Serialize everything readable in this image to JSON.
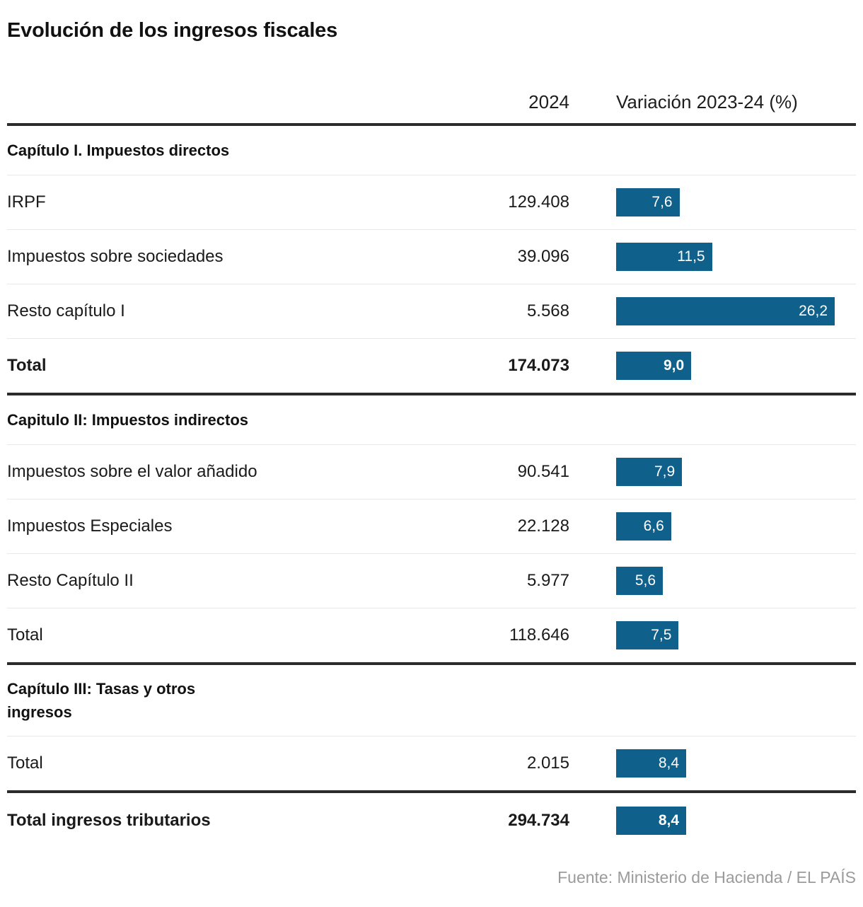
{
  "title": "Evolución de los ingresos fiscales",
  "columns": {
    "year": "2024",
    "variation": "Variación 2023-24 (%)"
  },
  "sections": [
    {
      "header": "Capítulo I. Impuestos directos",
      "rows": [
        {
          "label": "IRPF",
          "value": "129.408",
          "pct": 7.6,
          "pct_label": "7,6"
        },
        {
          "label": "Impuestos sobre sociedades",
          "value": "39.096",
          "pct": 11.5,
          "pct_label": "11,5"
        },
        {
          "label": "Resto capítulo I",
          "value": "5.568",
          "pct": 26.2,
          "pct_label": "26,2"
        },
        {
          "label": "Total",
          "value": "174.073",
          "pct": 9.0,
          "pct_label": "9,0"
        }
      ]
    },
    {
      "header": "Capitulo II: Impuestos indirectos",
      "rows": [
        {
          "label": "Impuestos sobre el valor añadido",
          "value": "90.541",
          "pct": 7.9,
          "pct_label": "7,9"
        },
        {
          "label": "Impuestos Especiales",
          "value": "22.128",
          "pct": 6.6,
          "pct_label": "6,6"
        },
        {
          "label": "Resto Capítulo II",
          "value": "5.977",
          "pct": 5.6,
          "pct_label": "5,6"
        },
        {
          "label": "Total",
          "value": "118.646",
          "pct": 7.5,
          "pct_label": "7,5"
        }
      ]
    },
    {
      "header": "Capítulo III: Tasas y otros ingresos",
      "rows": [
        {
          "label": "Total",
          "value": "2.015",
          "pct": 8.4,
          "pct_label": "8,4"
        }
      ]
    }
  ],
  "grand_total": {
    "label": "Total ingresos tributarios",
    "value": "294.734",
    "pct": 8.4,
    "pct_label": "8,4"
  },
  "footer": "Fuente: Ministerio de Hacienda / EL PAÍS",
  "colors": {
    "bar": "#0f618c",
    "rule_thick": "#2b2b2b",
    "rule_thin": "#e8e8e8",
    "footer_text": "#9b9b9b"
  },
  "chart_data": {
    "type": "bar",
    "title": "Evolución de los ingresos fiscales",
    "categories": [
      "IRPF",
      "Impuestos sobre sociedades",
      "Resto capítulo I",
      "Total Capítulo I",
      "Impuestos sobre el valor añadido",
      "Impuestos Especiales",
      "Resto Capítulo II",
      "Total Capítulo II",
      "Total Capítulo III",
      "Total ingresos tributarios"
    ],
    "series": [
      {
        "name": "2024",
        "values": [
          129408,
          39096,
          5568,
          174073,
          90541,
          22128,
          5977,
          118646,
          2015,
          294734
        ]
      },
      {
        "name": "Variación 2023-24 (%)",
        "values": [
          7.6,
          11.5,
          26.2,
          9.0,
          7.9,
          6.6,
          5.6,
          7.5,
          8.4,
          8.4
        ]
      }
    ],
    "xlabel": "Variación 2023-24 (%)",
    "ylabel": "",
    "xlim": [
      0,
      26.2
    ],
    "grid": false,
    "legend_position": "column-headers",
    "bar_color": "#0f618c"
  }
}
